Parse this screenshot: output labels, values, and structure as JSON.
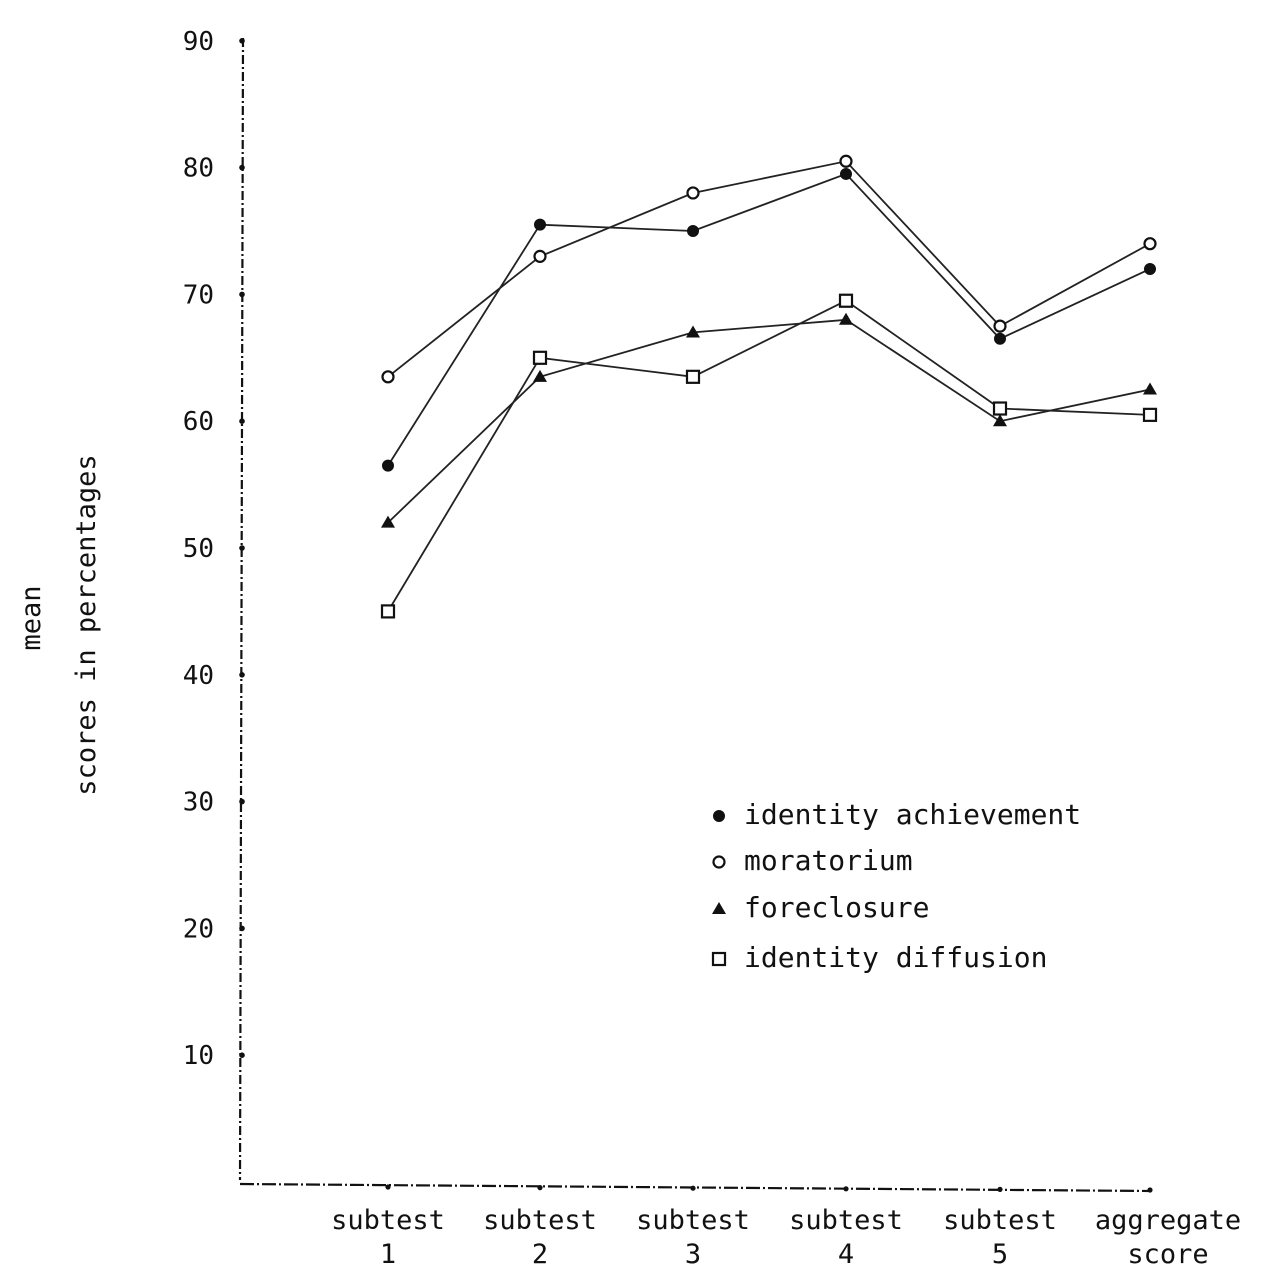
{
  "chart_data": {
    "type": "line",
    "xlabel": "",
    "ylabel_lines": [
      "mean",
      "scores in percentages"
    ],
    "ylim": [
      0,
      90
    ],
    "y_ticks": [
      10,
      20,
      30,
      40,
      50,
      60,
      70,
      80,
      90
    ],
    "categories": [
      {
        "line1": "subtest",
        "line2": "1"
      },
      {
        "line1": "subtest",
        "line2": "2"
      },
      {
        "line1": "subtest",
        "line2": "3"
      },
      {
        "line1": "subtest",
        "line2": "4"
      },
      {
        "line1": "subtest",
        "line2": "5"
      },
      {
        "line1": "aggregate",
        "line2": "score"
      }
    ],
    "series": [
      {
        "name": "identity achievement",
        "marker": "filled-circle",
        "values": [
          56.5,
          75.5,
          75,
          79.5,
          66.5,
          72
        ]
      },
      {
        "name": "moratorium",
        "marker": "open-circle",
        "values": [
          63.5,
          73,
          78,
          80.5,
          67.5,
          74
        ]
      },
      {
        "name": "foreclosure",
        "marker": "filled-triangle",
        "values": [
          52,
          63.5,
          67,
          68,
          60,
          62.5
        ]
      },
      {
        "name": "identity diffusion",
        "marker": "open-square",
        "values": [
          45,
          65,
          63.5,
          69.5,
          61,
          60.5
        ]
      }
    ],
    "legend_position": "lower-right",
    "grid": false
  }
}
